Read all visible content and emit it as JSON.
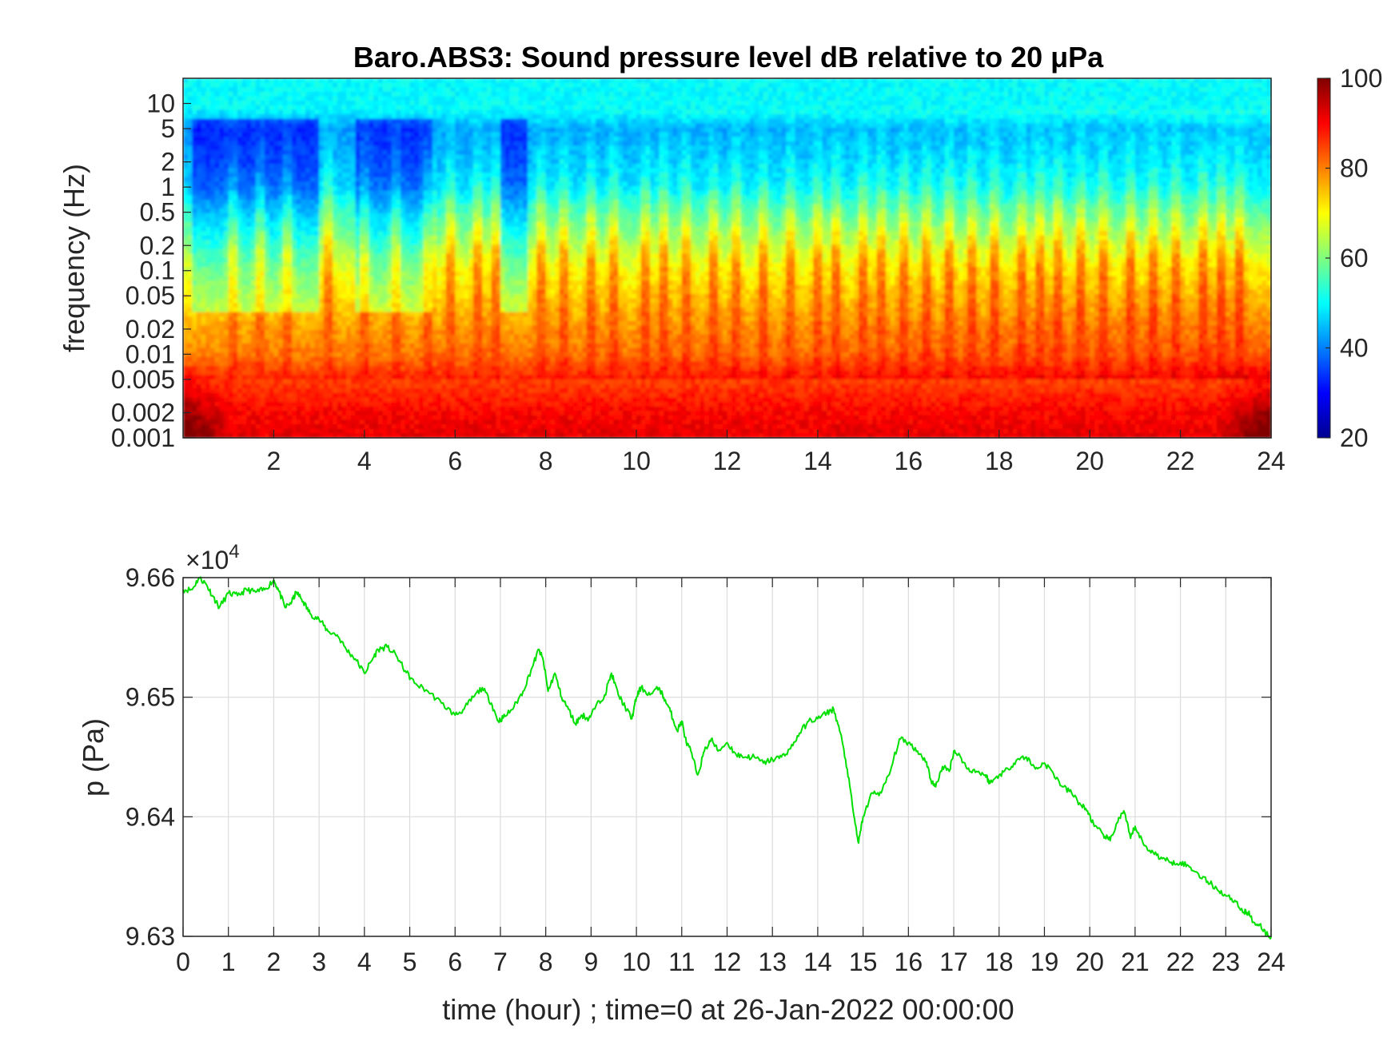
{
  "chart_data": [
    {
      "type": "heatmap",
      "title": "Baro.ABS3: Sound pressure level dB relative to 20 μPa",
      "xlabel": "",
      "ylabel": "frequency (Hz)",
      "x_range": [
        0,
        24
      ],
      "x_ticks": [
        "2",
        "4",
        "6",
        "8",
        "10",
        "12",
        "14",
        "16",
        "18",
        "20",
        "22",
        "24"
      ],
      "y_scale": "log",
      "y_range": [
        0.001,
        20
      ],
      "y_ticks": [
        "0.001",
        "0.002",
        "0.005",
        "0.01",
        "0.02",
        "0.05",
        "0.1",
        "0.2",
        "0.5",
        "1",
        "2",
        "5",
        "10"
      ],
      "colorbar": {
        "min": 20,
        "max": 100,
        "ticks": [
          "20",
          "40",
          "60",
          "80",
          "100"
        ],
        "colormap": "jet"
      },
      "level_profile": {
        "frequency_hz": [
          0.001,
          0.002,
          0.005,
          0.01,
          0.02,
          0.05,
          0.1,
          0.2,
          0.5,
          1,
          2,
          5,
          10,
          20
        ],
        "typical_db": [
          92,
          90,
          85,
          78,
          75,
          70,
          66,
          60,
          52,
          45,
          42,
          40,
          50,
          50
        ]
      },
      "bursts_hour": [
        1.1,
        1.7,
        2.3,
        3.2,
        4.0,
        4.7,
        5.4,
        5.9,
        6.5,
        6.9,
        7.9,
        8.4,
        9.0,
        9.5,
        10.2,
        10.6,
        11.1,
        11.7,
        12.2,
        12.8,
        13.4,
        14.0,
        14.4,
        15.0,
        15.4,
        15.9,
        16.4,
        16.9,
        17.4,
        17.9,
        18.5,
        18.9,
        19.3,
        19.8,
        20.3,
        20.9,
        21.4,
        21.9,
        22.5,
        22.9,
        23.3
      ],
      "quiet_hours": [
        [
          0.2,
          3.0
        ],
        [
          3.8,
          5.5
        ],
        [
          7.0,
          7.6
        ]
      ]
    },
    {
      "type": "line",
      "title": "",
      "xlabel": "time (hour) ; time=0 at 26-Jan-2022 00:00:00",
      "ylabel": "p (Pa)",
      "y_multiplier_label": "×10",
      "y_multiplier_exponent": "4",
      "x_ticks": [
        "0",
        "1",
        "2",
        "3",
        "4",
        "5",
        "6",
        "7",
        "8",
        "9",
        "10",
        "11",
        "12",
        "13",
        "14",
        "15",
        "16",
        "17",
        "18",
        "19",
        "20",
        "21",
        "22",
        "23",
        "24"
      ],
      "y_ticks": [
        "9.63",
        "9.64",
        "9.65",
        "9.66"
      ],
      "xlim": [
        0,
        24
      ],
      "ylim": [
        96300,
        96600
      ],
      "grid": true,
      "color": "#00e000",
      "series": [
        {
          "x": [
            0,
            0.2,
            0.35,
            0.5,
            0.65,
            0.8,
            1.0,
            1.2,
            1.4,
            1.6,
            1.8,
            2.0,
            2.1,
            2.25,
            2.4,
            2.5,
            2.65,
            2.8,
            3.0,
            3.2,
            3.4,
            3.6,
            3.8,
            4.0,
            4.15,
            4.3,
            4.5,
            4.7,
            4.9,
            5.1,
            5.4,
            5.7,
            6.0,
            6.2,
            6.4,
            6.6,
            6.8,
            6.95,
            7.1,
            7.3,
            7.5,
            7.7,
            7.85,
            7.95,
            8.05,
            8.2,
            8.35,
            8.5,
            8.65,
            8.8,
            8.95,
            9.1,
            9.3,
            9.45,
            9.6,
            9.75,
            9.9,
            10.0,
            10.1,
            10.3,
            10.5,
            10.6,
            10.75,
            10.9,
            11.0,
            11.1,
            11.2,
            11.35,
            11.5,
            11.65,
            11.8,
            12.0,
            12.2,
            12.4,
            12.6,
            12.8,
            13.0,
            13.2,
            13.4,
            13.6,
            13.8,
            14.0,
            14.2,
            14.35,
            14.5,
            14.65,
            14.8,
            14.9,
            15.0,
            15.2,
            15.4,
            15.6,
            15.8,
            16.0,
            16.2,
            16.4,
            16.5,
            16.6,
            16.75,
            16.9,
            17.0,
            17.15,
            17.3,
            17.5,
            17.7,
            17.8,
            18.0,
            18.2,
            18.4,
            18.6,
            18.8,
            19.0,
            19.2,
            19.4,
            19.6,
            19.8,
            19.95,
            20.1,
            20.3,
            20.45,
            20.6,
            20.75,
            20.9,
            21.0,
            21.2,
            21.4,
            21.6,
            21.8,
            22.0,
            22.2,
            22.4,
            22.6,
            22.8,
            23.0,
            23.2,
            23.4,
            23.5,
            23.6,
            23.75,
            23.9,
            24.0
          ],
          "y": [
            96590,
            96590,
            96600,
            96595,
            96585,
            96575,
            96587,
            96585,
            96590,
            96588,
            96590,
            96598,
            96590,
            96575,
            96580,
            96588,
            96580,
            96570,
            96565,
            96555,
            96552,
            96540,
            96532,
            96520,
            96530,
            96540,
            96542,
            96535,
            96522,
            96512,
            96505,
            96495,
            96485,
            96490,
            96500,
            96508,
            96495,
            96480,
            96484,
            96492,
            96505,
            96525,
            96540,
            96530,
            96505,
            96520,
            96500,
            96490,
            96478,
            96485,
            96482,
            96492,
            96502,
            96520,
            96502,
            96492,
            96482,
            96500,
            96508,
            96502,
            96508,
            96500,
            96488,
            96472,
            96480,
            96462,
            96455,
            96435,
            96455,
            96465,
            96455,
            96462,
            96452,
            96450,
            96450,
            96445,
            96448,
            96450,
            96457,
            96470,
            96480,
            96482,
            96487,
            96490,
            96470,
            96440,
            96400,
            96378,
            96400,
            96420,
            96420,
            96438,
            96465,
            96462,
            96455,
            96446,
            96430,
            96425,
            96442,
            96438,
            96455,
            96450,
            96440,
            96438,
            96435,
            96428,
            96435,
            96440,
            96448,
            96450,
            96440,
            96445,
            96436,
            96425,
            96420,
            96410,
            96405,
            96392,
            96385,
            96380,
            96395,
            96405,
            96382,
            96392,
            96376,
            96370,
            96365,
            96362,
            96362,
            96358,
            96352,
            96346,
            96340,
            96334,
            96330,
            96320,
            96320,
            96312,
            96310,
            96302,
            96300
          ]
        }
      ]
    }
  ]
}
